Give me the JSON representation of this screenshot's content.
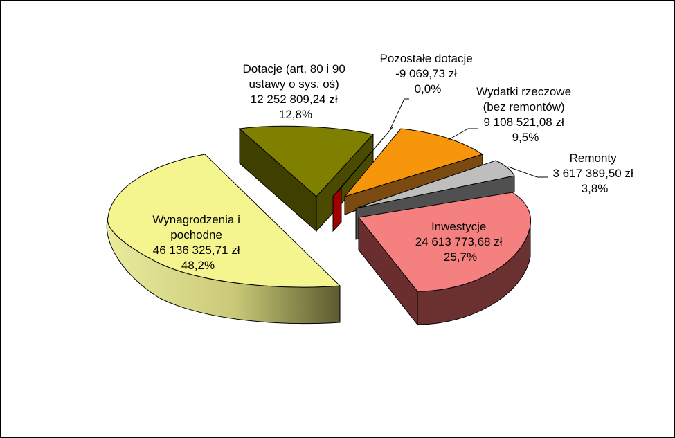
{
  "chart_data": {
    "type": "pie",
    "style": "3d-exploded",
    "slices": [
      {
        "name": "Wynagrodzenia i pochodne",
        "value": 46136325.71,
        "percent": 48.2,
        "label_lines": [
          "Wynagrodzenia i",
          "pochodne",
          "46 136 325,71 zł",
          "48,2%"
        ],
        "color": "#F5F58F"
      },
      {
        "name": "Dotacje (art. 80 i 90 ustawy o sys. oś)",
        "value": 12252809.24,
        "percent": 12.8,
        "label_lines": [
          "Dotacje (art. 80 i 90",
          "ustawy o sys. oś)",
          "12 252 809,24 zł",
          "12,8%"
        ],
        "color": "#7F7F00"
      },
      {
        "name": "Pozostałe dotacje",
        "value": -9069.73,
        "percent": 0.0,
        "label_lines": [
          "Pozostałe dotacje",
          "-9 069,73 zł",
          "0,0%"
        ],
        "color": "#E00000"
      },
      {
        "name": "Wydatki rzeczowe (bez remontów)",
        "value": 9108521.08,
        "percent": 9.5,
        "label_lines": [
          "Wydatki rzeczowe",
          "(bez remontów)",
          "9 108 521,08 zł",
          "9,5%"
        ],
        "color": "#F7960A"
      },
      {
        "name": "Remonty",
        "value": 3617389.5,
        "percent": 3.8,
        "label_lines": [
          "Remonty",
          "3 617 389,50 zł",
          "3,8%"
        ],
        "color": "#BEBEBE"
      },
      {
        "name": "Inwestycje",
        "value": 24613773.68,
        "percent": 25.7,
        "label_lines": [
          "Inwestycje",
          "24 613 773,68 zł",
          "25,7%"
        ],
        "color": "#F58080"
      }
    ]
  }
}
